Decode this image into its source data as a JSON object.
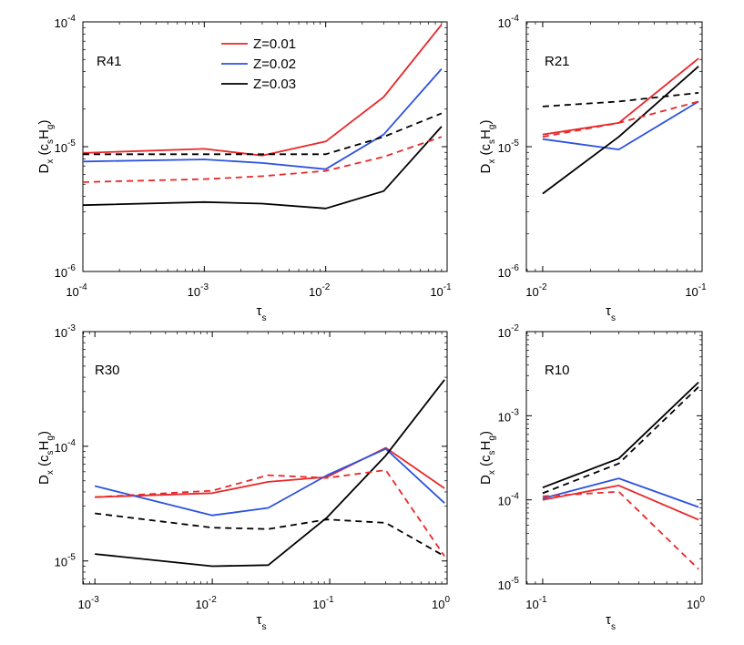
{
  "chart_data": [
    {
      "type": "line",
      "title": "R41",
      "xscale": "log",
      "yscale": "log",
      "xlim": [
        0.0001,
        0.1
      ],
      "ylim": [
        1e-06,
        0.0001
      ],
      "xticks": [
        {
          "base": "10",
          "exp": "-4"
        },
        {
          "base": "10",
          "exp": "-3"
        },
        {
          "base": "10",
          "exp": "-2"
        },
        {
          "base": "10",
          "exp": "-1"
        }
      ],
      "yticks": [
        {
          "base": "10",
          "exp": "-6"
        },
        {
          "base": "10",
          "exp": "-5"
        },
        {
          "base": "10",
          "exp": "-4"
        }
      ],
      "xlabel": {
        "main": "τ",
        "sub": "s"
      },
      "ylabel": {
        "main": "D",
        "sub": "x",
        "paren_open": " (c",
        "sub2": "s",
        "mid": "H",
        "sub3": "g",
        "paren_close": ")"
      },
      "legend_position": "top-center",
      "x": [
        0.0001,
        0.001,
        0.003,
        0.01,
        0.03,
        0.09
      ],
      "series": [
        {
          "name": "Z=0.01",
          "color": "#e8282a",
          "style": "solid",
          "values": [
            8.9e-06,
            9.6e-06,
            8.5e-06,
            1.1e-05,
            2.5e-05,
            9.5e-05
          ]
        },
        {
          "name": "Z=0.02",
          "color": "#2d52e0",
          "style": "solid",
          "values": [
            7.6e-06,
            7.9e-06,
            7.4e-06,
            6.6e-06,
            1.25e-05,
            4.2e-05
          ]
        },
        {
          "name": "Z=0.03",
          "color": "#000000",
          "style": "solid",
          "values": [
            3.4e-06,
            3.6e-06,
            3.5e-06,
            3.2e-06,
            4.4e-06,
            1.45e-05
          ]
        },
        {
          "name": "Z=0.01 dashed",
          "color": "#e8282a",
          "style": "dashed",
          "values": [
            5.2e-06,
            5.5e-06,
            5.8e-06,
            6.4e-06,
            8.3e-06,
            1.2e-05
          ]
        },
        {
          "name": "Z=0.03 dashed",
          "color": "#000000",
          "style": "dashed",
          "values": [
            8.7e-06,
            8.7e-06,
            8.7e-06,
            8.7e-06,
            1.2e-05,
            1.85e-05
          ]
        }
      ]
    },
    {
      "type": "line",
      "title": "R21",
      "xscale": "log",
      "yscale": "log",
      "xlim": [
        0.0079,
        0.1
      ],
      "ylim": [
        1e-06,
        0.0001
      ],
      "xticks": [
        {
          "base": "10",
          "exp": "-2"
        },
        {
          "base": "10",
          "exp": "-1"
        }
      ],
      "yticks": [
        {
          "base": "10",
          "exp": "-6"
        },
        {
          "base": "10",
          "exp": "-5"
        },
        {
          "base": "10",
          "exp": "-4"
        }
      ],
      "xlabel": {
        "main": "τ",
        "sub": "s"
      },
      "ylabel": {
        "main": "D",
        "sub": "x",
        "paren_open": " (c",
        "sub2": "s",
        "mid": "H",
        "sub3": "g",
        "paren_close": ")"
      },
      "x": [
        0.01,
        0.03,
        0.095
      ],
      "series": [
        {
          "name": "Z=0.01",
          "color": "#e8282a",
          "style": "solid",
          "values": [
            1.25e-05,
            1.55e-05,
            5.1e-05
          ]
        },
        {
          "name": "Z=0.02",
          "color": "#2d52e0",
          "style": "solid",
          "values": [
            1.15e-05,
            9.5e-06,
            2.3e-05
          ]
        },
        {
          "name": "Z=0.03",
          "color": "#000000",
          "style": "solid",
          "values": [
            4.2e-06,
            1.2e-05,
            4.4e-05
          ]
        },
        {
          "name": "Z=0.01 dashed",
          "color": "#e8282a",
          "style": "dashed",
          "values": [
            1.2e-05,
            1.55e-05,
            2.3e-05
          ]
        },
        {
          "name": "Z=0.03 dashed",
          "color": "#000000",
          "style": "dashed",
          "values": [
            2.1e-05,
            2.3e-05,
            2.7e-05
          ]
        }
      ]
    },
    {
      "type": "line",
      "title": "R30",
      "xscale": "log",
      "yscale": "log",
      "xlim": [
        0.00079,
        1.0
      ],
      "ylim": [
        6.3e-06,
        0.001
      ],
      "xticks": [
        {
          "base": "10",
          "exp": "-3"
        },
        {
          "base": "10",
          "exp": "-2"
        },
        {
          "base": "10",
          "exp": "-1"
        },
        {
          "base": "10",
          "exp": "0"
        }
      ],
      "yticks": [
        {
          "base": "10",
          "exp": "-5"
        },
        {
          "base": "10",
          "exp": "-4"
        },
        {
          "base": "10",
          "exp": "-3"
        }
      ],
      "xlabel": {
        "main": "τ",
        "sub": "s"
      },
      "ylabel": {
        "main": "D",
        "sub": "x",
        "paren_open": " (c",
        "sub2": "s",
        "mid": "H",
        "sub3": "g",
        "paren_close": ")"
      },
      "x": [
        0.001,
        0.01,
        0.03,
        0.095,
        0.3,
        0.95
      ],
      "series": [
        {
          "name": "Z=0.01",
          "color": "#e8282a",
          "style": "solid",
          "values": [
            3.6e-05,
            3.9e-05,
            4.9e-05,
            5.4e-05,
            9.7e-05,
            4.3e-05
          ]
        },
        {
          "name": "Z=0.02",
          "color": "#2d52e0",
          "style": "solid",
          "values": [
            4.5e-05,
            2.5e-05,
            2.9e-05,
            5.6e-05,
            9.5e-05,
            3.2e-05
          ]
        },
        {
          "name": "Z=0.03",
          "color": "#000000",
          "style": "solid",
          "values": [
            1.15e-05,
            9e-06,
            9.2e-06,
            2.4e-05,
            8.3e-05,
            0.00038
          ]
        },
        {
          "name": "Z=0.01 dashed",
          "color": "#e8282a",
          "style": "dashed",
          "values": [
            3.6e-05,
            4.1e-05,
            5.6e-05,
            5.3e-05,
            6.2e-05,
            1.1e-05
          ]
        },
        {
          "name": "Z=0.03 dashed",
          "color": "#000000",
          "style": "dashed",
          "values": [
            2.6e-05,
            1.95e-05,
            1.9e-05,
            2.3e-05,
            2.15e-05,
            1.1e-05
          ]
        }
      ]
    },
    {
      "type": "line",
      "title": "R10",
      "xscale": "log",
      "yscale": "log",
      "xlim": [
        0.079,
        1.0
      ],
      "ylim": [
        1e-05,
        0.01
      ],
      "xticks": [
        {
          "base": "10",
          "exp": "-1"
        },
        {
          "base": "10",
          "exp": "0"
        }
      ],
      "yticks": [
        {
          "base": "10",
          "exp": "-5"
        },
        {
          "base": "10",
          "exp": "-4"
        },
        {
          "base": "10",
          "exp": "-3"
        },
        {
          "base": "10",
          "exp": "-2"
        }
      ],
      "xlabel": {
        "main": "τ",
        "sub": "s"
      },
      "ylabel": {
        "main": "D",
        "sub": "x",
        "paren_open": " (c",
        "sub2": "s",
        "mid": "H",
        "sub3": "g",
        "paren_close": ")"
      },
      "x": [
        0.1,
        0.3,
        0.95
      ],
      "series": [
        {
          "name": "Z=0.01",
          "color": "#e8282a",
          "style": "solid",
          "values": [
            0.0001,
            0.000148,
            5.8e-05
          ]
        },
        {
          "name": "Z=0.02",
          "color": "#2d52e0",
          "style": "solid",
          "values": [
            0.000104,
            0.00018,
            8.2e-05
          ]
        },
        {
          "name": "Z=0.03",
          "color": "#000000",
          "style": "solid",
          "values": [
            0.00014,
            0.00031,
            0.0025
          ]
        },
        {
          "name": "Z=0.01 dashed",
          "color": "#e8282a",
          "style": "dashed",
          "values": [
            0.00011,
            0.000125,
            1.5e-05
          ]
        },
        {
          "name": "Z=0.03 dashed",
          "color": "#000000",
          "style": "dashed",
          "values": [
            0.00012,
            0.00027,
            0.0022
          ]
        }
      ]
    }
  ]
}
